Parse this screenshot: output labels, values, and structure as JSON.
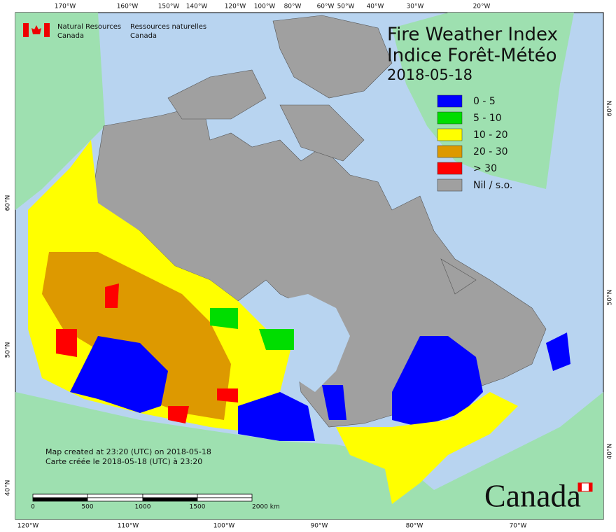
{
  "header": {
    "org_en": [
      "Natural Resources",
      "Canada"
    ],
    "org_fr": [
      "Ressources naturelles",
      "Canada"
    ]
  },
  "title": [
    "Fire Weather Index",
    "Indice Forêt-Météo"
  ],
  "date": "2018-05-18",
  "legend": [
    {
      "label": "0 - 5",
      "color": "#0000ff"
    },
    {
      "label": "5 - 10",
      "color": "#00dd00"
    },
    {
      "label": "10 - 20",
      "color": "#ffff00"
    },
    {
      "label": "20 - 30",
      "color": "#dd9900"
    },
    {
      "label": "> 30",
      "color": "#ff0000"
    },
    {
      "label": "Nil / s.o.",
      "color": "#a0a0a0"
    }
  ],
  "credit": [
    "Map created at 23:20 (UTC) on 2018-05-18",
    "Carte créée le 2018-05-18 (UTC) à 23:20"
  ],
  "scale": [
    "0",
    "500",
    "1000",
    "1500",
    "2000  km"
  ],
  "graticule": {
    "top": [
      "170°W",
      "160°W",
      "150°W",
      "140°W",
      "120°W",
      "100°W",
      "80°W",
      "60°W",
      "50°W",
      "40°W",
      "30°W",
      "20°W"
    ],
    "bottom": [
      "120°W",
      "110°W",
      "100°W",
      "90°W",
      "80°W",
      "70°W"
    ],
    "left": [
      "60°N",
      "50°N",
      "40°N"
    ],
    "right": [
      "60°N",
      "50°N",
      "40°N"
    ]
  },
  "wordmark": "Canada"
}
